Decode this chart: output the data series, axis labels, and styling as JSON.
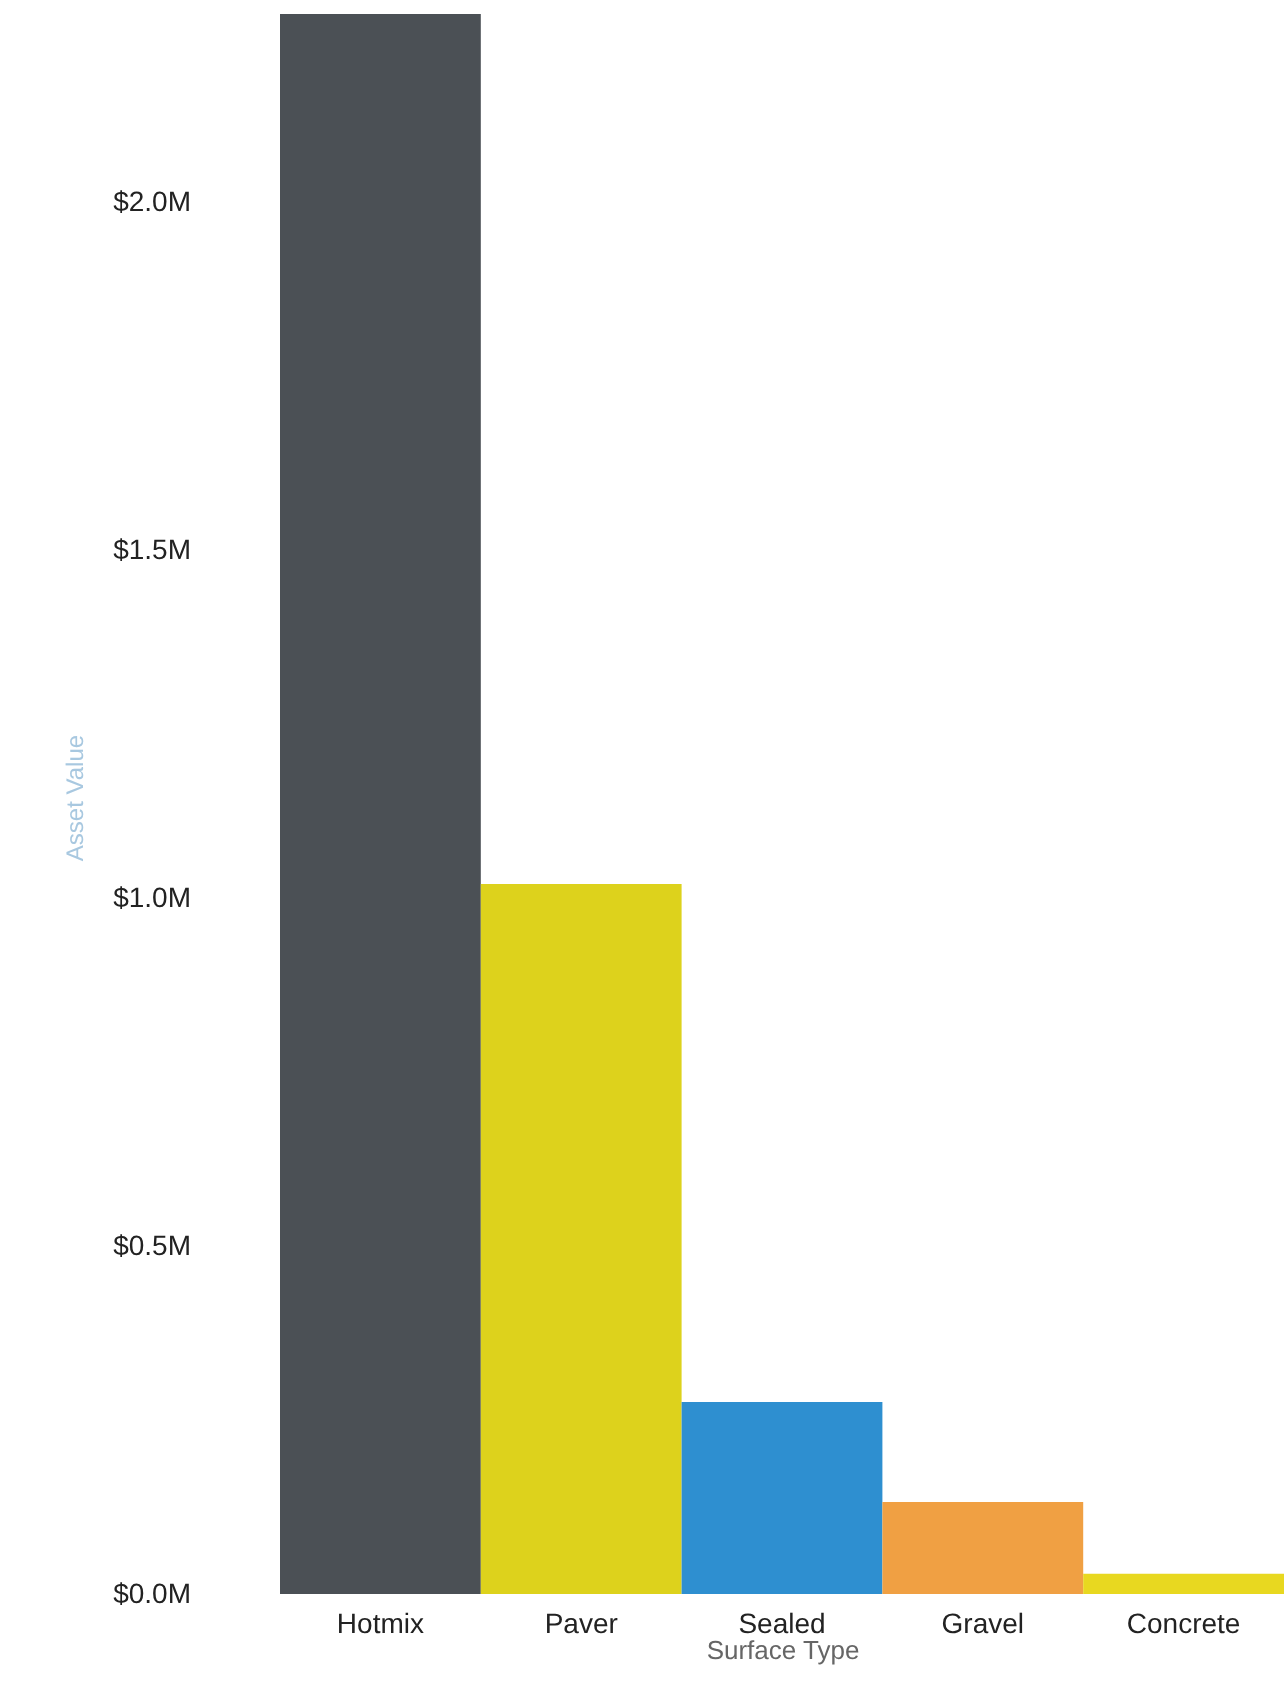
{
  "chart_data": {
    "type": "bar",
    "xlabel": "Surface Type",
    "ylabel": "Asset Value",
    "categories": [
      "Hotmix",
      "Paver",
      "Sealed",
      "Gravel",
      "Concrete"
    ],
    "values": [
      2.27,
      1.02,
      0.276,
      0.132,
      0.029
    ],
    "colors": [
      "#4b5055",
      "#ddd21c",
      "#2e8fd0",
      "#f0a043",
      "#e8d820"
    ],
    "ylim": [
      0,
      2.29
    ],
    "yticks": [
      {
        "value": 0,
        "label": "$0.0M"
      },
      {
        "value": 0.5,
        "label": "$0.5M"
      },
      {
        "value": 1,
        "label": "$1.0M"
      },
      {
        "value": 1.5,
        "label": "$1.5M"
      },
      {
        "value": 2,
        "label": "$2.0M"
      }
    ],
    "grid": false
  }
}
